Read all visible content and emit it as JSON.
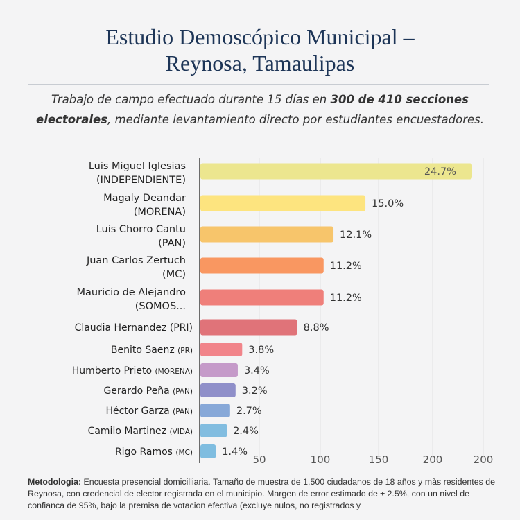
{
  "header": {
    "title_line1": "Estudio Demoscópico Municipal –",
    "title_line2": "Reynosa, Tamaulipas",
    "subtitle_part1": "Trabajo de campo efectuado durante 15 días en ",
    "subtitle_bold1": "300 de 410  secciones",
    "subtitle_bold2": "electorales",
    "subtitle_part2": ", mediante levantamiento directo por estudiantes encuestadores."
  },
  "chart_data": {
    "type": "bar",
    "orientation": "horizontal",
    "categories": [
      [
        "Luis Miguel Iglesias",
        "(INDEPENDIENTE)"
      ],
      [
        "Magaly Deandar",
        "(MORENA)"
      ],
      [
        "Luis Chorro Cantu",
        "(PAN)"
      ],
      [
        "Juan Carlos Zertuch",
        "(MC)"
      ],
      [
        "Mauricio de Alejandro",
        "(SOMOS..."
      ],
      [
        "Claudia Hernandez",
        "(PRI)"
      ],
      [
        "Benito Saenz",
        "(PR)"
      ],
      [
        "Humberto Prieto",
        "(MORENA)"
      ],
      [
        "Gerardo Peña",
        "(PAN)"
      ],
      [
        "Héctor Garza",
        "(PAN)"
      ],
      [
        "Camilo Martinez",
        "(VIDA)"
      ],
      [
        "Rigo Ramos",
        "(MC)"
      ]
    ],
    "values": [
      24.7,
      15.0,
      12.1,
      11.2,
      11.2,
      8.8,
      3.8,
      3.4,
      3.2,
      2.7,
      2.4,
      1.4
    ],
    "value_labels": [
      "24.7%",
      "15.0%",
      "12.1%",
      "11.2%",
      "11.2%",
      "8.8%",
      "3.8%",
      "3.4%",
      "3.2%",
      "2.7%",
      "2.4%",
      "1.4%"
    ],
    "colors": [
      "#ece68f",
      "#fde47f",
      "#f7c56b",
      "#f99761",
      "#ef7f7a",
      "#e07379",
      "#f1848a",
      "#c59ac9",
      "#8f8fc9",
      "#87a8d8",
      "#82bde0",
      "#7fbde0"
    ],
    "x_tick_labels": [
      "50",
      "100",
      "150",
      "200",
      "200"
    ],
    "grid": true,
    "legend": "none",
    "xlabel": "",
    "ylabel": ""
  },
  "methodology": {
    "label": "Metodologia:",
    "text": " Encuesta presencial domicilliaria. Tamaño de muestra de 1,500 ciudadanos de 18 años y màs residentes de Reynosa, con credencial de elector registrada en el municipio. Margen de error estimado de ± 2.5%, con un nivel de confianca de 95%, bajo la premisa de votacion efectiva (excluye nulos, no registrados y"
  }
}
